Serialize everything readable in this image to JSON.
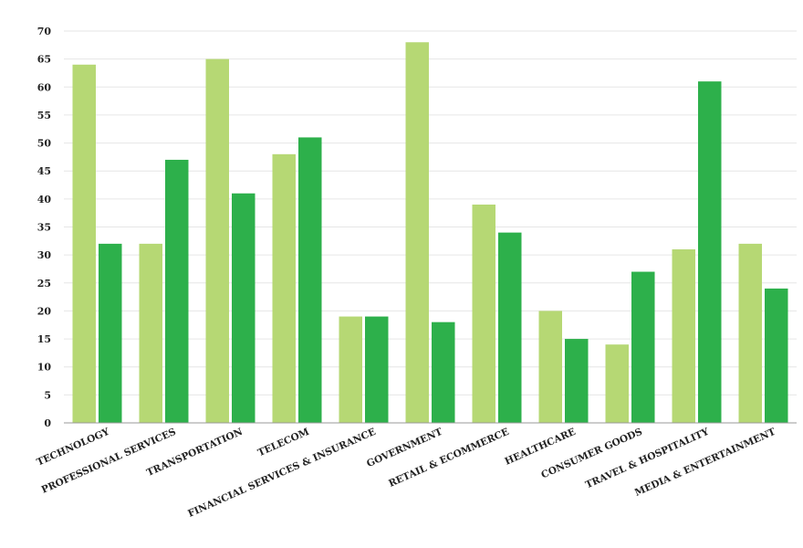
{
  "chart_data": {
    "type": "bar",
    "categories": [
      "TECHNOLOGY",
      "PROFESSIONAL SERVICES",
      "TRANSPORTATION",
      "TELECOM",
      "FINANCIAL SERVICES & INSURANCE",
      "GOVERNMENT",
      "RETAIL & ECOMMERCE",
      "HEALTHCARE",
      "CONSUMER GOODS",
      "TRAVEL & HOSPITALITY",
      "MEDIA & ENTERTAINMENT"
    ],
    "series": [
      {
        "values": [
          64,
          32,
          65,
          48,
          19,
          68,
          39,
          20,
          14,
          31,
          32
        ],
        "color": "#b6d874"
      },
      {
        "values": [
          32,
          47,
          41,
          51,
          19,
          18,
          34,
          15,
          27,
          61,
          24
        ],
        "color": "#2db04b"
      }
    ],
    "ylim": [
      0,
      70
    ],
    "yticks": [
      0,
      5,
      10,
      15,
      20,
      25,
      30,
      35,
      40,
      45,
      50,
      55,
      60,
      65,
      70
    ],
    "grid": true,
    "legend": "none",
    "xlabel": "",
    "ylabel": "",
    "title": ""
  }
}
